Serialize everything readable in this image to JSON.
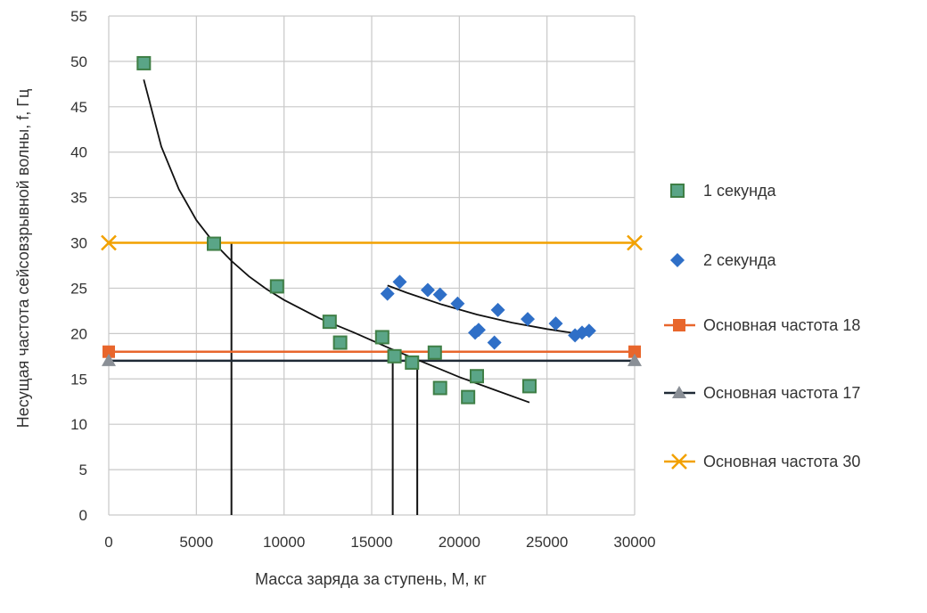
{
  "chart_data": {
    "type": "scatter",
    "xlabel": "Масса заряда за ступень, М, кг",
    "ylabel": "Несущая частота сейсовзрывной волны, f, Гц",
    "xlim": [
      0,
      30000
    ],
    "ylim": [
      0,
      55
    ],
    "x_ticks": [
      "0",
      "5000",
      "10000",
      "15000",
      "20000",
      "25000",
      "30000"
    ],
    "y_ticks": [
      "0",
      "5",
      "10",
      "15",
      "20",
      "25",
      "30",
      "35",
      "40",
      "45",
      "50",
      "55"
    ],
    "grid": true,
    "legend_position": "right",
    "series": [
      {
        "name": "1 секунда",
        "marker": "square",
        "color": "#5aa587",
        "points": [
          [
            2000,
            49.8
          ],
          [
            6000,
            29.9
          ],
          [
            9600,
            25.2
          ],
          [
            12600,
            21.3
          ],
          [
            13200,
            19
          ],
          [
            15600,
            19.6
          ],
          [
            16300,
            17.5
          ],
          [
            17300,
            16.8
          ],
          [
            18600,
            17.9
          ],
          [
            18900,
            14
          ],
          [
            20500,
            13
          ],
          [
            21000,
            15.3
          ],
          [
            24000,
            14.2
          ]
        ]
      },
      {
        "name": "2 секунда",
        "marker": "diamond",
        "color": "#2f6fc7",
        "points": [
          [
            15900,
            24.4
          ],
          [
            16600,
            25.7
          ],
          [
            18200,
            24.8
          ],
          [
            18900,
            24.3
          ],
          [
            19900,
            23.3
          ],
          [
            20900,
            20.1
          ],
          [
            21100,
            20.4
          ],
          [
            22000,
            19
          ],
          [
            22200,
            22.6
          ],
          [
            23900,
            21.6
          ],
          [
            25500,
            21.1
          ],
          [
            26600,
            19.8
          ],
          [
            27000,
            20.1
          ],
          [
            27400,
            20.3
          ]
        ]
      },
      {
        "name": "Основная частота 18",
        "marker": "square",
        "color": "#e8662c",
        "value": 18,
        "x_range": [
          0,
          30000
        ]
      },
      {
        "name": "Основная частота 17",
        "marker": "triangle",
        "color": "#8a8f96",
        "line_color": "#1f2a36",
        "value": 17,
        "x_range": [
          0,
          30000
        ]
      },
      {
        "name": "Основная частота 30",
        "marker": "cross",
        "color": "#f2a100",
        "value": 30,
        "x_range": [
          0,
          30000
        ]
      }
    ],
    "trendlines": [
      {
        "series": "1 секунда",
        "points": [
          [
            2000,
            48
          ],
          [
            3000,
            40.6
          ],
          [
            4000,
            35.9
          ],
          [
            5000,
            32.5
          ],
          [
            6000,
            30
          ],
          [
            7000,
            28
          ],
          [
            8000,
            26.3
          ],
          [
            9000,
            24.9
          ],
          [
            10000,
            23.7
          ],
          [
            12000,
            21.7
          ],
          [
            14000,
            20.1
          ],
          [
            16000,
            18.4
          ],
          [
            18000,
            16.8
          ],
          [
            20000,
            15.2
          ],
          [
            22000,
            13.8
          ],
          [
            24000,
            12.4
          ]
        ]
      },
      {
        "series": "2 секунда",
        "points": [
          [
            15900,
            25.3
          ],
          [
            17000,
            24.5
          ],
          [
            19000,
            23.2
          ],
          [
            21000,
            22.1
          ],
          [
            23000,
            21.2
          ],
          [
            25000,
            20.5
          ],
          [
            27400,
            19.8
          ]
        ]
      }
    ],
    "drop_lines": [
      {
        "x": 7000,
        "y": 30
      },
      {
        "x": 16200,
        "y": 18
      },
      {
        "x": 17600,
        "y": 17
      }
    ]
  }
}
